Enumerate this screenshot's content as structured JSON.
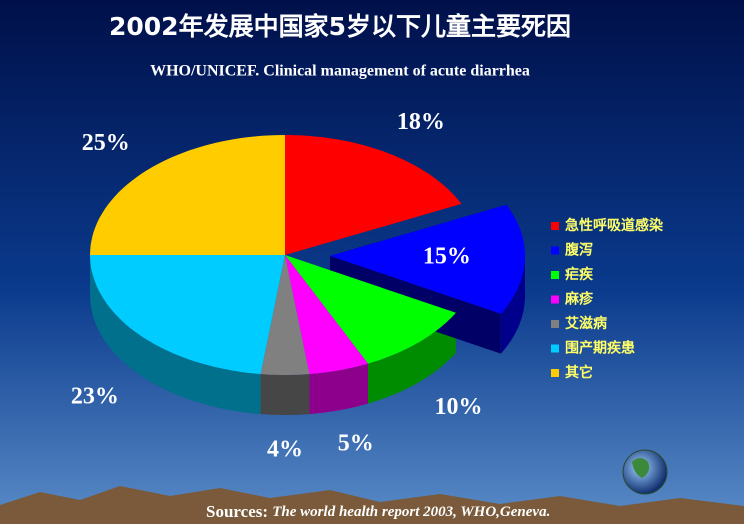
{
  "chart_data": {
    "type": "pie3d",
    "title": "2002年发展中国家5岁以下儿童主要死因",
    "subtitle": "WHO/UNICEF. Clinical management of acute diarrhea",
    "source": {
      "label": "Sources:",
      "text": "The world health report 2003, WHO,Geneva."
    },
    "categories": [
      "急性呼吸道感染",
      "腹泻",
      "疟疾",
      "麻疹",
      "艾滋病",
      "围产期疾患",
      "其它"
    ],
    "values": [
      18,
      15,
      10,
      5,
      4,
      23,
      25
    ],
    "value_labels": [
      "18%",
      "15%",
      "10%",
      "5%",
      "4%",
      "23%",
      "25%"
    ],
    "colors": [
      "#ff0000",
      "#0000ff",
      "#00ff00",
      "#ff00ff",
      "#808080",
      "#00ccff",
      "#ffcc00"
    ],
    "explode": [
      false,
      true,
      false,
      false,
      false,
      false,
      false
    ],
    "legend": "right"
  }
}
